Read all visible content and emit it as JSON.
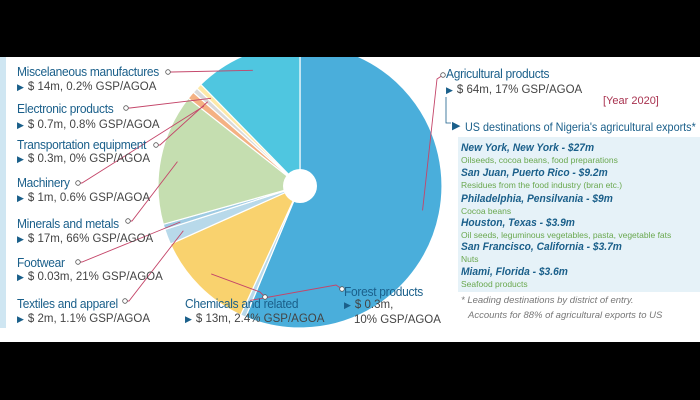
{
  "chart_data": {
    "type": "pie",
    "year_label": "[Year 2020]",
    "slices": [
      {
        "name": "Agricultural products",
        "value": 64,
        "label": "$ 64m, 17% GSP/AGOA",
        "color": "#4aaedb"
      },
      {
        "name": "Forest products",
        "value": 0.3,
        "label": "$ 0.3m,",
        "label2": "10% GSP/AGOA",
        "color": "#b8d9ea"
      },
      {
        "name": "Chemicals and related",
        "value": 13,
        "label": "$ 13m, 2.4% GSP/AGOA",
        "color": "#f9d26e"
      },
      {
        "name": "Textiles and apparel",
        "value": 2,
        "label": "$ 2m, 1.1% GSP/AGOA",
        "color": "#b8d9ea"
      },
      {
        "name": "Footwear",
        "value": 0.03,
        "label": "$ 0.03m, 21% GSP/AGOA",
        "color": "#9fcbe3"
      },
      {
        "name": "Minerals and metals",
        "value": 17,
        "label": "$ 17m, 66% GSP/AGOA",
        "color": "#c5deb0"
      },
      {
        "name": "Machinery",
        "value": 1,
        "label": "$ 1m, 0.6% GSP/AGOA",
        "color": "#f4b183"
      },
      {
        "name": "Transportation equipment",
        "value": 0.3,
        "label": "$ 0.3m, 0% GSP/AGOA",
        "color": "#d9d9d9"
      },
      {
        "name": "Electronic products",
        "value": 0.7,
        "label": "$ 0.7m, 0.8% GSP/AGOA",
        "color": "#fde9a8"
      },
      {
        "name": "Miscelaneous manufactures",
        "value": 14,
        "label": "$ 14m, 0.2% GSP/AGOA",
        "color": "#4fc6e0"
      }
    ]
  },
  "destinations": {
    "title": "US destinations of Nigeria's agricultural exports*",
    "items": [
      {
        "city": "New York, New York  -  $27m",
        "desc": "Oilseeds, cocoa beans, food preparations"
      },
      {
        "city": "San Juan, Puerto Rico  -  $9.2m",
        "desc": "Residues from the food industry (bran etc.)"
      },
      {
        "city": "Philadelphia, Pensilvania  -  $9m",
        "desc": "Cocoa beans"
      },
      {
        "city": "Houston, Texas  -  $3.9m",
        "desc": "Oil seeds, leguminous vegetables, pasta, vegetable fats"
      },
      {
        "city": "San Francisco, California  -  $3.7m",
        "desc": "Nuts"
      },
      {
        "city": "Miami, Florida  -  $3.6m",
        "desc": "Seafood products"
      }
    ],
    "footnote1": "* Leading destinations by district of entry.",
    "footnote2": "Accounts for 88% of agricultural exports to US"
  },
  "colors": {
    "accent": "#1a5f8a",
    "year": "#a8324f",
    "leader": "#c44569"
  }
}
